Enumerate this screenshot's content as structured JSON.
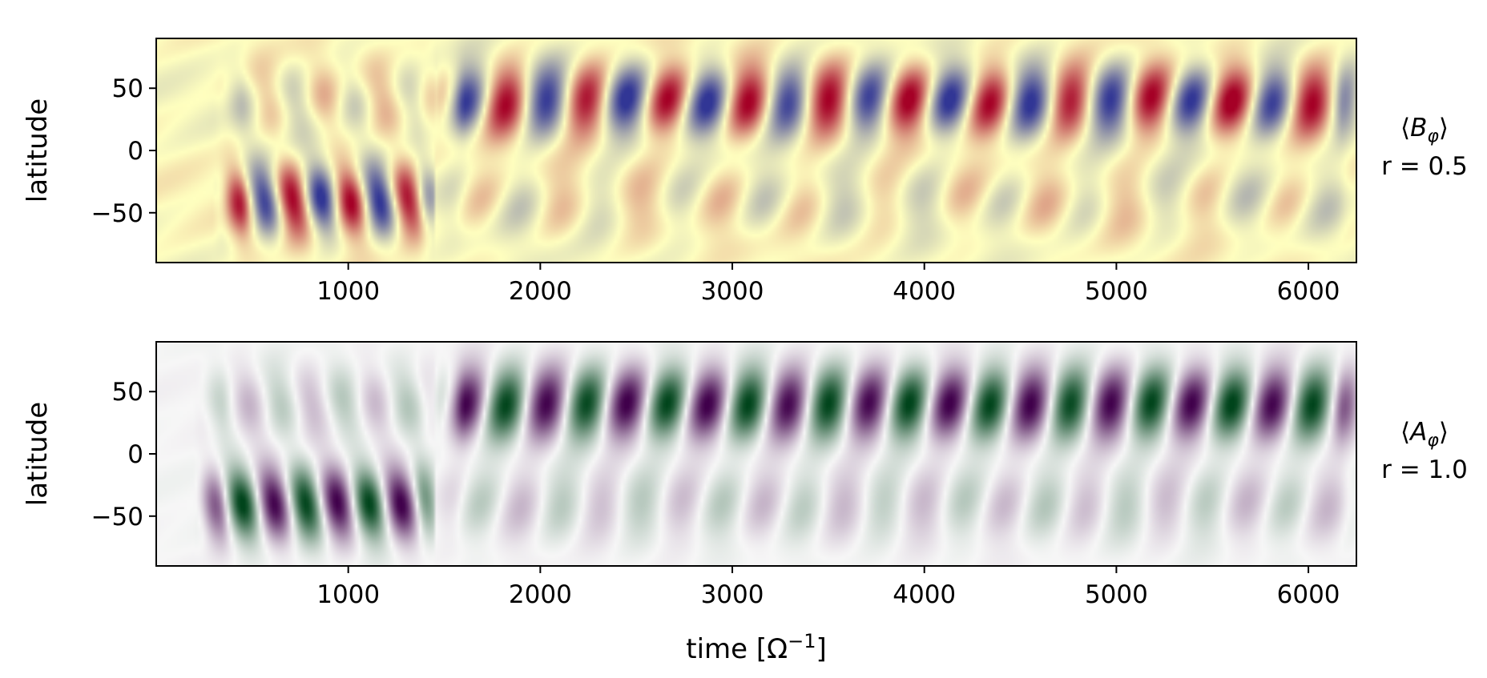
{
  "chart_data": [
    {
      "type": "heatmap",
      "name": "Bphi",
      "panel_label_line1": "⟨B_φ⟩",
      "panel_label_line2": "r = 0.5",
      "colormap": "RdYlBu",
      "colors": {
        "negative": "#313695",
        "zero": "#ffffbf",
        "positive": "#a50026"
      },
      "ylabel": "latitude",
      "xlim": [
        0,
        6250
      ],
      "ylim": [
        -90,
        90
      ],
      "xticks": [
        1000,
        2000,
        3000,
        4000,
        5000,
        6000
      ],
      "yticks": [
        50,
        0,
        -50
      ],
      "xtick_labels": [
        "1000",
        "2000",
        "3000",
        "4000",
        "5000",
        "6000"
      ],
      "ytick_labels": [
        "50",
        "0",
        "−50"
      ],
      "regimes": [
        {
          "t_start": 300,
          "t_end": 1450,
          "hemisphere": "south",
          "center_lat": -40,
          "period": 300
        },
        {
          "t_start": 1450,
          "t_end": 6250,
          "hemisphere": "north",
          "center_lat": 40,
          "period": 420
        }
      ]
    },
    {
      "type": "heatmap",
      "name": "Aphi",
      "panel_label_line1": "⟨A_φ⟩",
      "panel_label_line2": "r = 1.0",
      "colormap": "PRGn",
      "colors": {
        "negative": "#40004b",
        "zero": "#f7f7f7",
        "positive": "#00441b"
      },
      "ylabel": "latitude",
      "xlabel": "time [Ω⁻¹]",
      "xlim": [
        0,
        6250
      ],
      "ylim": [
        -90,
        90
      ],
      "xticks": [
        1000,
        2000,
        3000,
        4000,
        5000,
        6000
      ],
      "yticks": [
        50,
        0,
        -50
      ],
      "xtick_labels": [
        "1000",
        "2000",
        "3000",
        "4000",
        "5000",
        "6000"
      ],
      "ytick_labels": [
        "50",
        "0",
        "−50"
      ],
      "regimes": [
        {
          "t_start": 200,
          "t_end": 1450,
          "hemisphere": "south",
          "center_lat": -40,
          "period": 330
        },
        {
          "t_start": 1450,
          "t_end": 6250,
          "hemisphere": "north",
          "center_lat": 40,
          "period": 420
        }
      ]
    }
  ]
}
